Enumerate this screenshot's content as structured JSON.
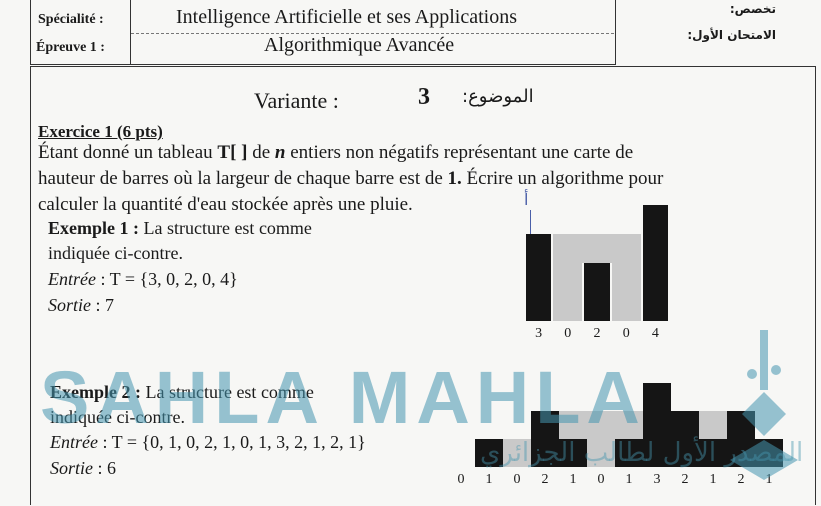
{
  "header": {
    "specialite_label": "Spécialité :",
    "specialite_value": "Intelligence Artificielle et ses Applications",
    "epreuve_label": "Épreuve 1 :",
    "epreuve_value": "Algorithmique Avancée",
    "ar_specialty": "تخصص:",
    "ar_exam": "الامتحان الأول:"
  },
  "variant": {
    "label": "Variante :",
    "number": "3",
    "ar_subject": "الموضوع:"
  },
  "exercise": {
    "title": "Exercice 1 (6 pts)",
    "text": "Étant donné un tableau T[ ] de n entiers non négatifs représentant une carte de hauteur de barres où la largeur de chaque barre est de 1. Écrire un algorithme pour calculer la quantité d'eau stockée après une pluie.",
    "line1a": "Étant donné un tableau ",
    "line1b": "T[ ]",
    "line1c": " de ",
    "line1d": "n",
    "line1e": " entiers non négatifs représentant une carte de",
    "line2a": "hauteur de barres où la largeur de chaque barre est de ",
    "line2b": "1.",
    "line2c": " Écrire un algorithme pour",
    "line3": "calculer la quantité d'eau stockée après une pluie."
  },
  "example1": {
    "title": "Exemple 1 :",
    "desc1": "La structure est  comme",
    "desc2": "indiquée ci-contre.",
    "input_label": "Entrée",
    "input_value": " : T = {3, 0, 2, 0, 4}",
    "output_label": "Sortie",
    "output_value": " : 7",
    "annotation": "أ",
    "bars": [
      3,
      0,
      2,
      0,
      4
    ],
    "labels": [
      "3",
      "0",
      "2",
      "0",
      "4"
    ]
  },
  "example2": {
    "title": "Exemple 2 :",
    "desc1": "La structure est  comme",
    "desc2": "indiquée ci-contre.",
    "input_label": "Entrée",
    "input_value": " : T = {0, 1, 0, 2, 1, 0, 1, 3, 2, 1, 2, 1}",
    "output_label": "Sortie",
    "output_value": " : 6",
    "bars": [
      0,
      1,
      0,
      2,
      1,
      0,
      1,
      3,
      2,
      1,
      2,
      1
    ],
    "labels": [
      "0",
      "1",
      "0",
      "2",
      "1",
      "0",
      "1",
      "3",
      "2",
      "1",
      "2",
      "1"
    ]
  },
  "watermark": {
    "latin": "SAHLA MAHLA",
    "arabic": "المصدر الأول لطالب الجزائري"
  },
  "colors": {
    "bar": "#151515",
    "water": "#c9c9c9",
    "watermark": "#4696af"
  }
}
